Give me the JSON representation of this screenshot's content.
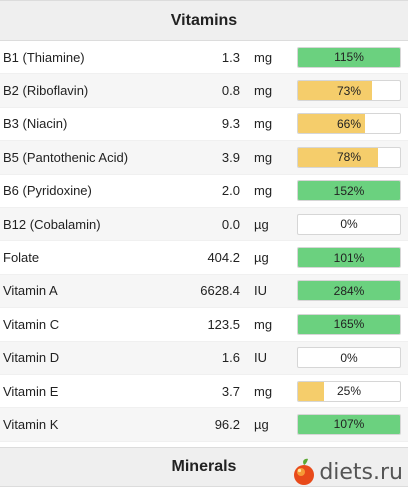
{
  "vitamins": {
    "title": "Vitamins",
    "rows": [
      {
        "name": "B1 (Thiamine)",
        "amount": "1.3",
        "unit": "mg",
        "percent_label": "115%",
        "percent": 115,
        "color": "green"
      },
      {
        "name": "B2 (Riboflavin)",
        "amount": "0.8",
        "unit": "mg",
        "percent_label": "73%",
        "percent": 73,
        "color": "yellow"
      },
      {
        "name": "B3 (Niacin)",
        "amount": "9.3",
        "unit": "mg",
        "percent_label": "66%",
        "percent": 66,
        "color": "yellow"
      },
      {
        "name": "B5 (Pantothenic Acid)",
        "amount": "3.9",
        "unit": "mg",
        "percent_label": "78%",
        "percent": 78,
        "color": "yellow"
      },
      {
        "name": "B6 (Pyridoxine)",
        "amount": "2.0",
        "unit": "mg",
        "percent_label": "152%",
        "percent": 152,
        "color": "green"
      },
      {
        "name": "B12 (Cobalamin)",
        "amount": "0.0",
        "unit": "µg",
        "percent_label": "0%",
        "percent": 0,
        "color": "none"
      },
      {
        "name": "Folate",
        "amount": "404.2",
        "unit": "µg",
        "percent_label": "101%",
        "percent": 101,
        "color": "green"
      },
      {
        "name": "Vitamin A",
        "amount": "6628.4",
        "unit": "IU",
        "percent_label": "284%",
        "percent": 284,
        "color": "green"
      },
      {
        "name": "Vitamin C",
        "amount": "123.5",
        "unit": "mg",
        "percent_label": "165%",
        "percent": 165,
        "color": "green"
      },
      {
        "name": "Vitamin D",
        "amount": "1.6",
        "unit": "IU",
        "percent_label": "0%",
        "percent": 0,
        "color": "none"
      },
      {
        "name": "Vitamin E",
        "amount": "3.7",
        "unit": "mg",
        "percent_label": "25%",
        "percent": 25,
        "color": "yellow"
      },
      {
        "name": "Vitamin K",
        "amount": "96.2",
        "unit": "µg",
        "percent_label": "107%",
        "percent": 107,
        "color": "green"
      }
    ]
  },
  "minerals": {
    "title": "Minerals"
  },
  "watermark": {
    "text": "diets.ru",
    "icon": "apple-icon"
  },
  "colors": {
    "green": "#6bd17f",
    "yellow": "#f5cd6b",
    "header_bg": "#efefef"
  }
}
